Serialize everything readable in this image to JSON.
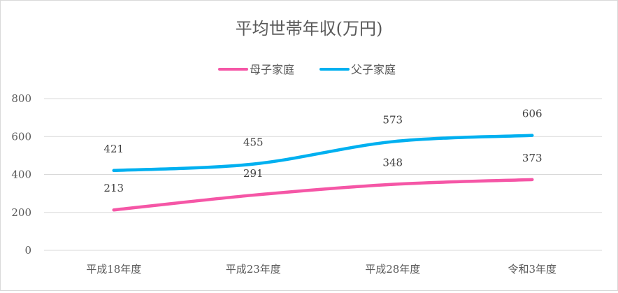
{
  "chart_data": {
    "type": "line",
    "title": "平均世帯年収(万円)",
    "categories": [
      "平成18年度",
      "平成23年度",
      "平成28年度",
      "令和3年度"
    ],
    "series": [
      {
        "name": "母子家庭",
        "color": "#f556a6",
        "values": [
          213,
          291,
          348,
          373
        ]
      },
      {
        "name": "父子家庭",
        "color": "#00b0f0",
        "values": [
          421,
          455,
          573,
          606
        ]
      }
    ],
    "yticks": [
      0,
      200,
      400,
      600,
      800
    ],
    "ylim": [
      0,
      800
    ],
    "grid": true,
    "legend": "top-center",
    "xlabel": "",
    "ylabel": ""
  }
}
